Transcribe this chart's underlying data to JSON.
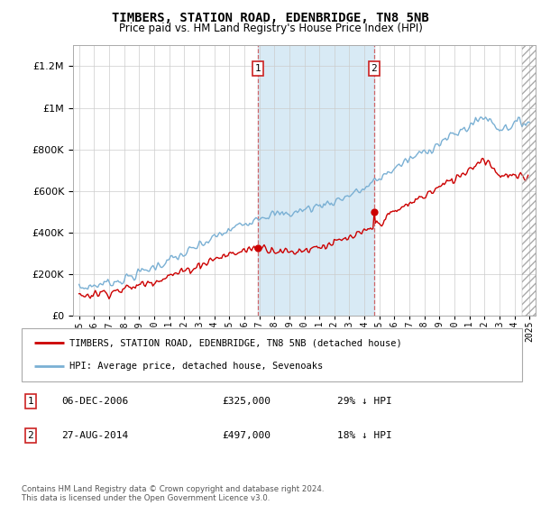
{
  "title": "TIMBERS, STATION ROAD, EDENBRIDGE, TN8 5NB",
  "subtitle": "Price paid vs. HM Land Registry's House Price Index (HPI)",
  "property_label": "TIMBERS, STATION ROAD, EDENBRIDGE, TN8 5NB (detached house)",
  "hpi_label": "HPI: Average price, detached house, Sevenoaks",
  "transaction1_date": "06-DEC-2006",
  "transaction1_price": 325000,
  "transaction1_pct": "29% ↓ HPI",
  "transaction2_date": "27-AUG-2014",
  "transaction2_price": 497000,
  "transaction2_pct": "18% ↓ HPI",
  "footer": "Contains HM Land Registry data © Crown copyright and database right 2024.\nThis data is licensed under the Open Government Licence v3.0.",
  "property_color": "#cc0000",
  "hpi_color": "#7ab0d4",
  "shade_color": "#d8eaf5",
  "ylim": [
    0,
    1300000
  ],
  "yticks": [
    0,
    200000,
    400000,
    600000,
    800000,
    1000000,
    1200000
  ],
  "x_start_year": 1995,
  "x_end_year": 2025,
  "transaction1_year": 2006.92,
  "transaction2_year": 2014.65
}
